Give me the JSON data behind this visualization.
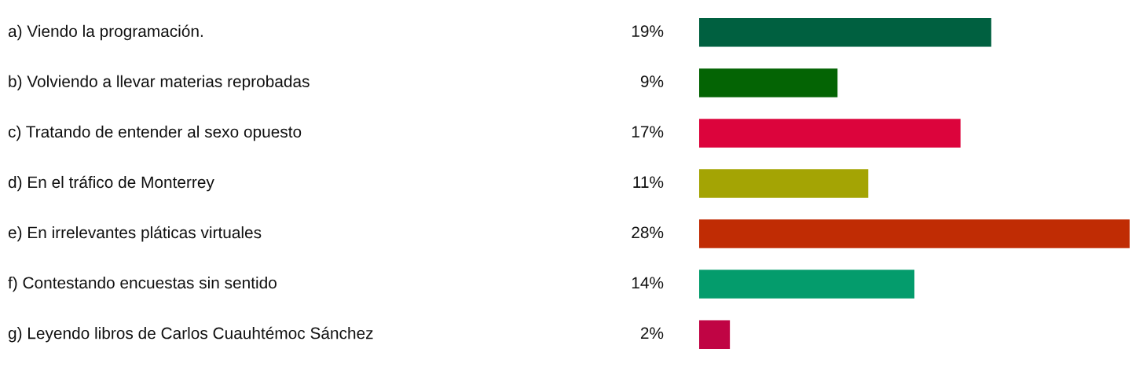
{
  "chart_data": {
    "type": "bar",
    "orientation": "horizontal",
    "categories": [
      "a) Viendo la programación.",
      "b) Volviendo a llevar materias reprobadas",
      "c) Tratando de entender al sexo opuesto",
      "d) En el tráfico de Monterrey",
      "e) En irrelevantes pláticas virtuales",
      "f) Contestando encuestas sin sentido",
      "g) Leyendo libros de Carlos Cuauhtémoc Sánchez"
    ],
    "values": [
      19,
      9,
      17,
      11,
      28,
      14,
      2
    ],
    "value_labels": [
      "19%",
      "9%",
      "17%",
      "11%",
      "28%",
      "14%",
      "2%"
    ],
    "colors": [
      "#006040",
      "#046404",
      "#dc043c",
      "#a4a404",
      "#c02c04",
      "#049c6c",
      "#c00444"
    ]
  }
}
